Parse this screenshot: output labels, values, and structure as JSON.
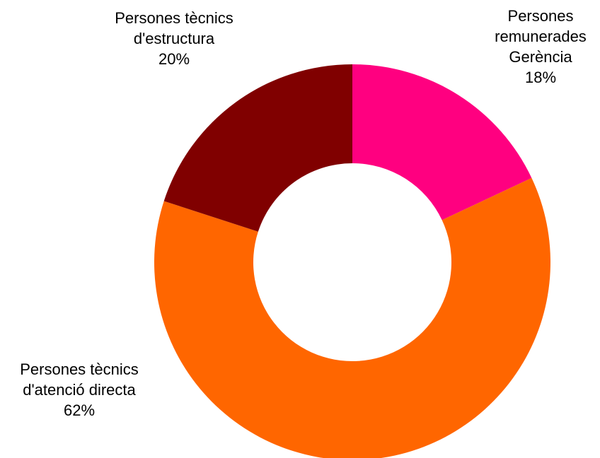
{
  "chart_data": {
    "type": "pie",
    "donut": true,
    "title": "",
    "legend": "none",
    "slices": [
      {
        "label_lines": [
          "Persones",
          "remunerades",
          "Gerència"
        ],
        "value": 18,
        "value_label": "18%",
        "color": "#FF0080"
      },
      {
        "label_lines": [
          "Persones tècnics",
          "d'atenció directa"
        ],
        "value": 62,
        "value_label": "62%",
        "color": "#FF6600"
      },
      {
        "label_lines": [
          "Persones tècnics",
          "d'estructura"
        ],
        "value": 20,
        "value_label": "20%",
        "color": "#800000"
      }
    ]
  }
}
